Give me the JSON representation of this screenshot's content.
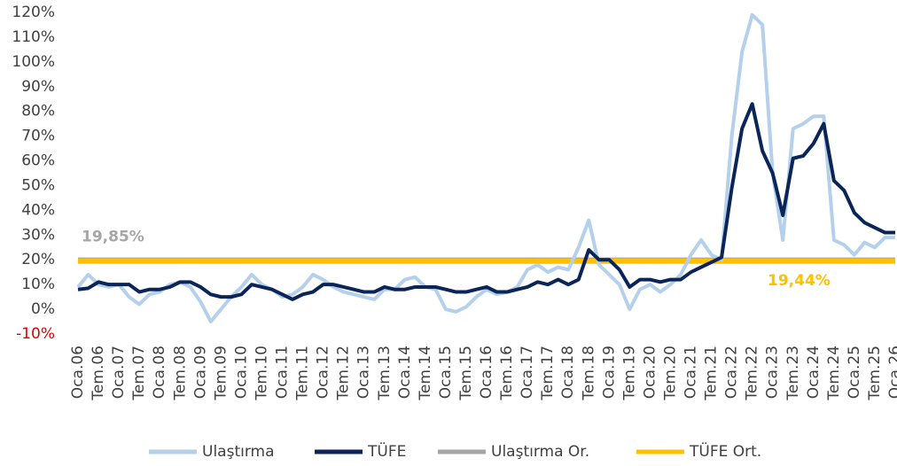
{
  "chart_data": {
    "type": "line",
    "categories": [
      "Oca.06",
      null,
      "Tem.06",
      null,
      "Oca.07",
      null,
      "Tem.07",
      null,
      "Oca.08",
      null,
      "Tem.08",
      null,
      "Oca.09",
      null,
      "Tem.09",
      null,
      "Oca.10",
      null,
      "Tem.10",
      null,
      "Oca.11",
      null,
      "Tem.11",
      null,
      "Oca.12",
      null,
      "Tem.12",
      null,
      "Oca.13",
      null,
      "Tem.13",
      null,
      "Oca.14",
      null,
      "Tem.14",
      null,
      "Oca.15",
      null,
      "Tem.15",
      null,
      "Oca.16",
      null,
      "Tem.16",
      null,
      "Oca.17",
      null,
      "Tem.17",
      null,
      "Oca.18",
      null,
      "Tem.18",
      null,
      "Oca.19",
      null,
      "Tem.19",
      null,
      "Oca.20",
      null,
      "Tem.20",
      null,
      "Oca.21",
      null,
      "Tem.21",
      null,
      "Oca.22",
      null,
      "Tem.22",
      null,
      "Oca.23",
      null,
      "Tem.23",
      null,
      "Oca.24",
      null,
      "Tem.24",
      null,
      "Oca.25",
      null,
      "Tem.25",
      null,
      "Oca.26"
    ],
    "series": [
      {
        "name": "Ulaştırma",
        "color": "#b4d0ea",
        "values": [
          9,
          14,
          10,
          9,
          10,
          5,
          2,
          6,
          7,
          10,
          11,
          9,
          3,
          -5,
          0,
          5,
          9,
          14,
          10,
          8,
          5,
          6,
          9,
          14,
          12,
          9,
          7,
          6,
          5,
          4,
          8,
          8,
          12,
          13,
          9,
          8,
          0,
          -1,
          1,
          5,
          8,
          6,
          7,
          9,
          16,
          18,
          15,
          17,
          16,
          25,
          36,
          18,
          14,
          10,
          0,
          8,
          10,
          7,
          10,
          14,
          22,
          28,
          22,
          20,
          70,
          104,
          119,
          115,
          55,
          28,
          73,
          75,
          78,
          78,
          28,
          26,
          22,
          27,
          25,
          29,
          29
        ]
      },
      {
        "name": "TÜFE",
        "color": "#0b2559",
        "values": [
          8,
          8.5,
          11,
          10,
          10,
          10,
          7,
          8,
          8,
          9,
          11,
          11,
          9,
          6,
          5,
          5,
          6,
          10,
          9,
          8,
          6,
          4,
          6,
          7,
          10,
          10,
          9,
          8,
          7,
          7,
          9,
          8,
          8,
          9,
          9,
          9,
          8,
          7,
          7,
          8,
          9,
          7,
          7,
          8,
          9,
          11,
          10,
          12,
          10,
          12,
          24,
          20,
          20,
          16,
          9,
          12,
          12,
          11,
          12,
          12,
          15,
          17,
          19,
          21,
          49,
          73,
          83,
          64,
          55,
          38,
          61,
          62,
          67,
          75,
          52,
          48,
          39,
          35,
          33,
          31,
          31
        ]
      }
    ],
    "reference_lines": [
      {
        "name": "Ulaştırma Or.",
        "color": "#a6a6a6",
        "value": 19.85,
        "value_label": "19,85%"
      },
      {
        "name": "TÜFE Ort.",
        "color": "#ffc000",
        "value": 19.44,
        "value_label": "19,44%"
      }
    ],
    "ylim": [
      -10,
      120
    ],
    "yticks": [
      {
        "value": -10,
        "label": "-10%"
      },
      {
        "value": 0,
        "label": "0%"
      },
      {
        "value": 10,
        "label": "10%"
      },
      {
        "value": 20,
        "label": "20%"
      },
      {
        "value": 30,
        "label": "30%"
      },
      {
        "value": 40,
        "label": "40%"
      },
      {
        "value": 50,
        "label": "50%"
      },
      {
        "value": 60,
        "label": "60%"
      },
      {
        "value": 70,
        "label": "70%"
      },
      {
        "value": 80,
        "label": "80%"
      },
      {
        "value": 90,
        "label": "90%"
      },
      {
        "value": 100,
        "label": "100%"
      },
      {
        "value": 110,
        "label": "110%"
      },
      {
        "value": 120,
        "label": "120%"
      }
    ],
    "negative_tick_color": "#e00000",
    "grid": false,
    "legend": "bottom"
  }
}
